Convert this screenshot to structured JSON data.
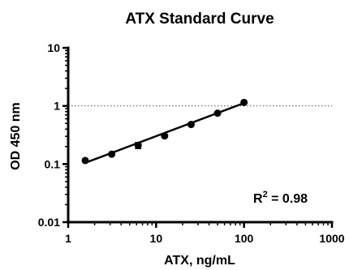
{
  "chart_data": {
    "type": "scatter",
    "title": "ATX Standard Curve",
    "xlabel": "ATX, ng/mL",
    "ylabel": "OD 450 nm",
    "xscale": "log",
    "yscale": "log",
    "xlim": [
      1,
      1000
    ],
    "ylim": [
      0.01,
      10
    ],
    "xticks": [
      1,
      10,
      100,
      1000
    ],
    "xtick_labels": [
      "1",
      "10",
      "100",
      "1000"
    ],
    "yticks": [
      0.01,
      0.1,
      1,
      10
    ],
    "ytick_labels": [
      "0.01",
      "0.1",
      "1",
      "10"
    ],
    "reference_line": {
      "y": 1,
      "style": "dotted"
    },
    "series": [
      {
        "points": [
          {
            "x": 1.5625,
            "y": 0.115,
            "err": 0.005
          },
          {
            "x": 3.125,
            "y": 0.148,
            "err": 0.004
          },
          {
            "x": 6.25,
            "y": 0.21,
            "err": 0.025
          },
          {
            "x": 12.5,
            "y": 0.305,
            "err": 0.01
          },
          {
            "x": 25,
            "y": 0.48,
            "err": 0.01
          },
          {
            "x": 50,
            "y": 0.75,
            "err": 0.015
          },
          {
            "x": 100,
            "y": 1.15,
            "err": 0.02
          }
        ],
        "fit": {
          "x": [
            1.5625,
            100
          ],
          "y": [
            0.105,
            1.12
          ]
        }
      }
    ],
    "annotation": {
      "text": "R",
      "superscript": "2",
      "suffix": " = 0.98"
    },
    "grid": false,
    "legend": "none"
  }
}
